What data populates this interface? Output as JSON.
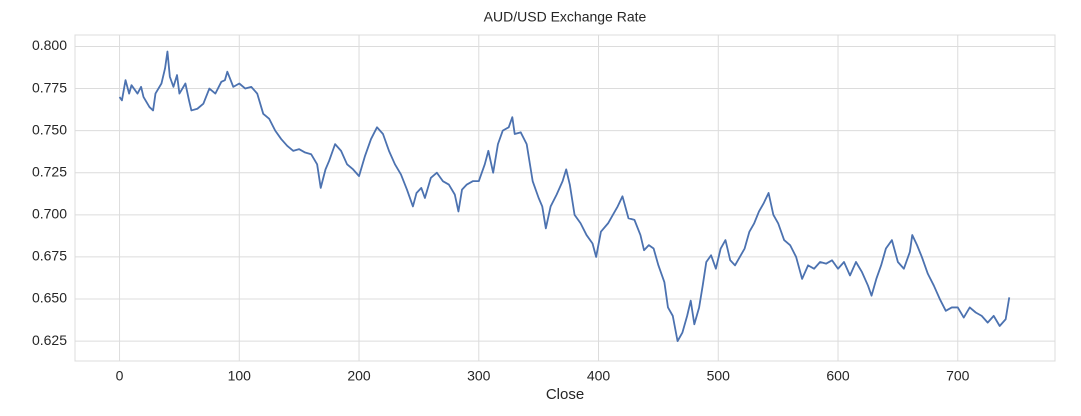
{
  "chart_data": {
    "type": "line",
    "title": "AUD/USD Exchange Rate",
    "x_label": "Close",
    "color": "#4c72b0",
    "grid": true,
    "x": [
      0,
      2,
      5,
      8,
      10,
      15,
      18,
      20,
      25,
      28,
      30,
      35,
      38,
      40,
      42,
      45,
      48,
      50,
      55,
      58,
      60,
      65,
      70,
      75,
      80,
      85,
      88,
      90,
      95,
      100,
      105,
      110,
      115,
      120,
      125,
      130,
      135,
      140,
      145,
      150,
      155,
      160,
      165,
      168,
      172,
      175,
      180,
      185,
      190,
      195,
      200,
      205,
      210,
      215,
      220,
      225,
      230,
      235,
      240,
      245,
      248,
      252,
      255,
      260,
      265,
      270,
      275,
      280,
      283,
      286,
      290,
      295,
      300,
      305,
      308,
      312,
      316,
      320,
      325,
      328,
      330,
      335,
      340,
      345,
      350,
      353,
      356,
      360,
      365,
      370,
      373,
      376,
      380,
      385,
      390,
      395,
      398,
      402,
      408,
      412,
      416,
      420,
      425,
      430,
      435,
      438,
      442,
      446,
      450,
      455,
      458,
      462,
      466,
      470,
      474,
      477,
      480,
      484,
      487,
      490,
      494,
      498,
      502,
      506,
      510,
      514,
      518,
      522,
      526,
      530,
      534,
      538,
      542,
      546,
      550,
      555,
      560,
      565,
      570,
      575,
      580,
      585,
      590,
      595,
      600,
      605,
      610,
      615,
      620,
      625,
      628,
      632,
      636,
      640,
      645,
      650,
      655,
      660,
      662,
      666,
      670,
      675,
      680,
      685,
      690,
      695,
      700,
      705,
      710,
      715,
      720,
      725,
      730,
      735,
      740,
      743
    ],
    "values": [
      0.77,
      0.768,
      0.78,
      0.772,
      0.777,
      0.772,
      0.776,
      0.77,
      0.764,
      0.762,
      0.772,
      0.778,
      0.787,
      0.797,
      0.782,
      0.776,
      0.783,
      0.772,
      0.778,
      0.768,
      0.762,
      0.763,
      0.766,
      0.775,
      0.772,
      0.779,
      0.78,
      0.785,
      0.776,
      0.778,
      0.775,
      0.776,
      0.772,
      0.76,
      0.757,
      0.75,
      0.745,
      0.741,
      0.738,
      0.739,
      0.737,
      0.736,
      0.73,
      0.716,
      0.727,
      0.732,
      0.742,
      0.738,
      0.73,
      0.727,
      0.723,
      0.735,
      0.745,
      0.752,
      0.748,
      0.738,
      0.73,
      0.724,
      0.715,
      0.705,
      0.713,
      0.716,
      0.71,
      0.722,
      0.725,
      0.72,
      0.718,
      0.712,
      0.702,
      0.715,
      0.718,
      0.72,
      0.72,
      0.73,
      0.738,
      0.725,
      0.742,
      0.75,
      0.752,
      0.758,
      0.748,
      0.749,
      0.742,
      0.72,
      0.71,
      0.705,
      0.692,
      0.705,
      0.712,
      0.72,
      0.727,
      0.718,
      0.7,
      0.695,
      0.688,
      0.683,
      0.675,
      0.69,
      0.695,
      0.7,
      0.705,
      0.711,
      0.698,
      0.697,
      0.688,
      0.679,
      0.682,
      0.68,
      0.67,
      0.66,
      0.645,
      0.64,
      0.625,
      0.63,
      0.64,
      0.649,
      0.635,
      0.645,
      0.658,
      0.672,
      0.676,
      0.668,
      0.68,
      0.685,
      0.673,
      0.67,
      0.675,
      0.68,
      0.69,
      0.695,
      0.702,
      0.707,
      0.713,
      0.7,
      0.695,
      0.685,
      0.682,
      0.675,
      0.662,
      0.67,
      0.668,
      0.672,
      0.671,
      0.673,
      0.668,
      0.672,
      0.664,
      0.672,
      0.666,
      0.658,
      0.652,
      0.662,
      0.67,
      0.68,
      0.685,
      0.672,
      0.668,
      0.678,
      0.688,
      0.682,
      0.675,
      0.665,
      0.658,
      0.65,
      0.643,
      0.645,
      0.645,
      0.639,
      0.645,
      0.642,
      0.64,
      0.636,
      0.64,
      0.634,
      0.638,
      0.651
    ],
    "xlim": [
      -37.2,
      781.2
    ],
    "xticks": [
      0,
      100,
      200,
      300,
      400,
      500,
      600,
      700
    ],
    "ylim": [
      0.6132,
      0.8068
    ],
    "yticks": [
      0.625,
      {
        "value": 0.65,
        "label": "0.650"
      },
      0.675,
      {
        "value": 0.7,
        "label": "0.700"
      },
      0.725,
      {
        "value": 0.75,
        "label": "0.750"
      },
      0.775,
      {
        "value": 0.8,
        "label": "0.800"
      }
    ]
  }
}
